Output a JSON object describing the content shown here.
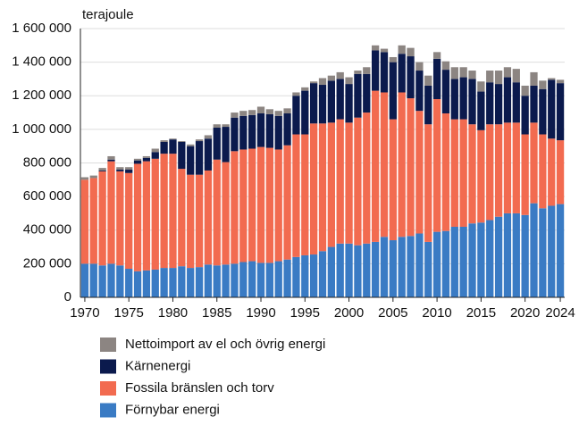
{
  "chart_data": {
    "type": "stacked_bar",
    "y_label": "terajoule",
    "x": [
      1970,
      1971,
      1972,
      1973,
      1974,
      1975,
      1976,
      1977,
      1978,
      1979,
      1980,
      1981,
      1982,
      1983,
      1984,
      1985,
      1986,
      1987,
      1988,
      1989,
      1990,
      1991,
      1992,
      1993,
      1994,
      1995,
      1996,
      1997,
      1998,
      1999,
      2000,
      2001,
      2002,
      2003,
      2004,
      2005,
      2006,
      2007,
      2008,
      2009,
      2010,
      2011,
      2012,
      2013,
      2014,
      2015,
      2016,
      2017,
      2018,
      2019,
      2020,
      2021,
      2022,
      2023,
      2024
    ],
    "xlim": [
      1969.5,
      2024.5
    ],
    "xticks": [
      1970,
      1975,
      1980,
      1985,
      1990,
      1995,
      2000,
      2005,
      2010,
      2015,
      2020,
      2024
    ],
    "ylim": [
      0,
      1600000
    ],
    "yticks": [
      0,
      {
        "value": 200000,
        "label": "200 000"
      },
      {
        "value": 400000,
        "label": "400 000"
      },
      {
        "value": 600000,
        "label": "600 000"
      },
      {
        "value": 800000,
        "label": "800 000"
      },
      {
        "value": 1000000,
        "label": "1 000 000"
      },
      {
        "value": 1200000,
        "label": "1 200 000"
      },
      {
        "value": 1400000,
        "label": "1 400 000"
      },
      {
        "value": 1600000,
        "label": "1 600 000"
      }
    ],
    "grid": true,
    "series": [
      {
        "name": "Förnybar energi",
        "color": "#3a7bc4",
        "values": [
          200000,
          200000,
          190000,
          200000,
          190000,
          170000,
          155000,
          160000,
          165000,
          175000,
          175000,
          185000,
          175000,
          180000,
          195000,
          190000,
          195000,
          200000,
          210000,
          215000,
          205000,
          205000,
          215000,
          225000,
          240000,
          250000,
          255000,
          275000,
          300000,
          320000,
          320000,
          310000,
          320000,
          330000,
          360000,
          340000,
          360000,
          365000,
          380000,
          330000,
          390000,
          395000,
          420000,
          420000,
          440000,
          445000,
          460000,
          480000,
          500000,
          500000,
          490000,
          560000,
          530000,
          545000,
          555000
        ]
      },
      {
        "name": "Fossila bränslen och torv",
        "color": "#f26b50",
        "values": [
          500000,
          510000,
          560000,
          610000,
          560000,
          570000,
          640000,
          650000,
          660000,
          680000,
          680000,
          580000,
          555000,
          550000,
          560000,
          630000,
          610000,
          670000,
          670000,
          670000,
          690000,
          685000,
          665000,
          680000,
          730000,
          720000,
          780000,
          760000,
          740000,
          740000,
          720000,
          760000,
          780000,
          900000,
          860000,
          720000,
          860000,
          820000,
          730000,
          700000,
          790000,
          700000,
          640000,
          640000,
          590000,
          550000,
          570000,
          550000,
          540000,
          540000,
          480000,
          480000,
          440000,
          400000,
          380000
        ]
      },
      {
        "name": "Kärnenergi",
        "color": "#0b1a4d",
        "values": [
          0,
          0,
          5000,
          10000,
          10000,
          20000,
          20000,
          20000,
          40000,
          70000,
          85000,
          160000,
          170000,
          200000,
          190000,
          190000,
          210000,
          200000,
          200000,
          200000,
          200000,
          200000,
          200000,
          190000,
          230000,
          260000,
          240000,
          230000,
          250000,
          240000,
          230000,
          260000,
          230000,
          240000,
          240000,
          340000,
          230000,
          250000,
          240000,
          230000,
          240000,
          260000,
          240000,
          250000,
          270000,
          230000,
          250000,
          240000,
          270000,
          240000,
          230000,
          220000,
          270000,
          350000,
          340000
        ]
      },
      {
        "name": "Nettoimport av el och övrig energi",
        "color": "#8c8582",
        "values": [
          15000,
          15000,
          15000,
          20000,
          15000,
          15000,
          10000,
          10000,
          20000,
          10000,
          5000,
          5000,
          10000,
          10000,
          20000,
          20000,
          15000,
          30000,
          30000,
          30000,
          40000,
          30000,
          30000,
          30000,
          20000,
          20000,
          10000,
          40000,
          30000,
          40000,
          40000,
          20000,
          40000,
          30000,
          20000,
          30000,
          50000,
          50000,
          50000,
          60000,
          40000,
          50000,
          70000,
          60000,
          50000,
          60000,
          70000,
          80000,
          60000,
          80000,
          60000,
          80000,
          50000,
          10000,
          20000
        ]
      }
    ]
  }
}
